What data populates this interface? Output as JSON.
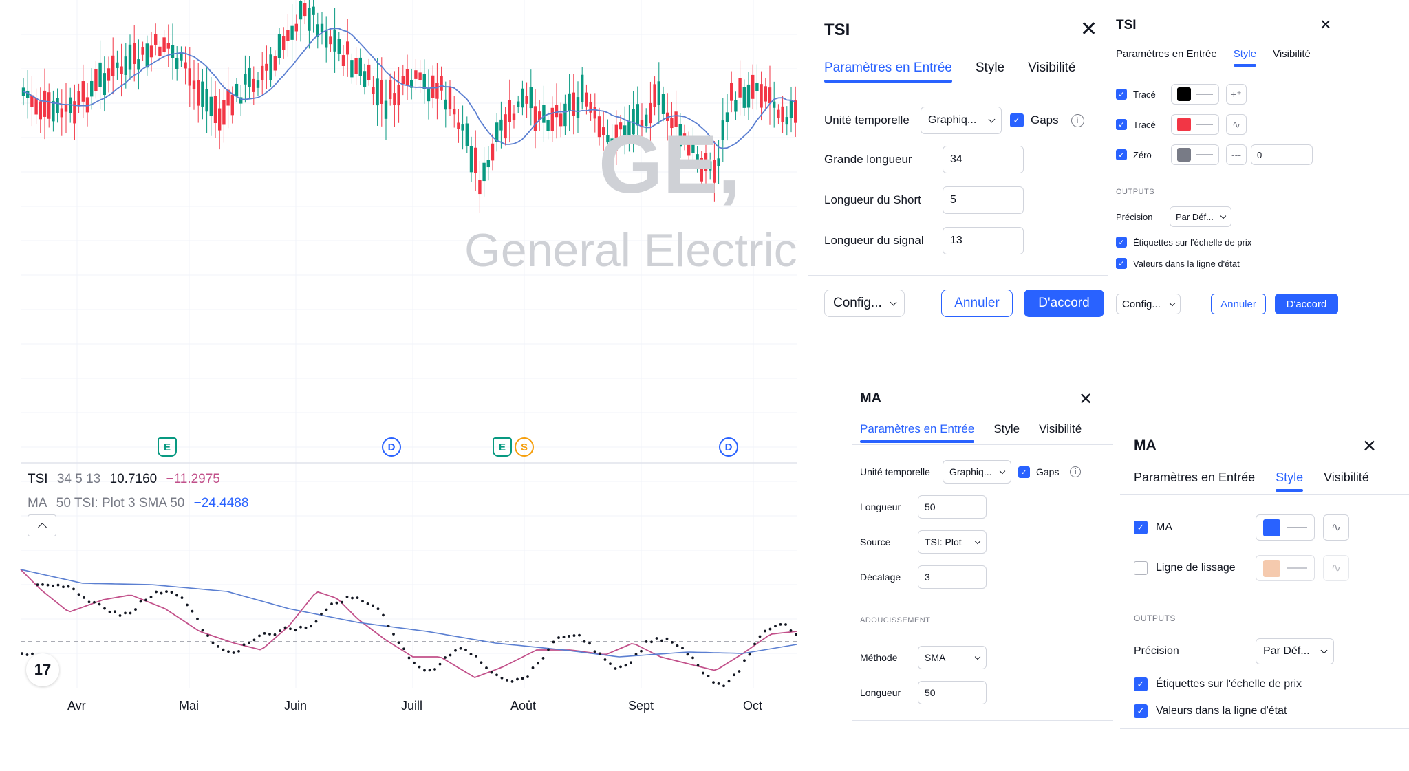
{
  "chart": {
    "watermark_ticker": "GE,",
    "watermark_name": "General Electric",
    "legend": {
      "tsi_name": "TSI",
      "tsi_params": "34 5 13",
      "tsi_value1": "10.7160",
      "tsi_value2": "−11.2975",
      "ma_name": "MA",
      "ma_params": "50 TSI: Plot 3 SMA 50",
      "ma_value": "−24.4488"
    },
    "collapse_icon": "chevron-up-icon",
    "logo_text": "17",
    "months": [
      "Avr",
      "Mai",
      "Juin",
      "Juill",
      "Août",
      "Sept",
      "Oct"
    ],
    "events": [
      {
        "label": "E",
        "kind": "earnings"
      },
      {
        "label": "D",
        "kind": "dividend"
      },
      {
        "label": "E",
        "kind": "earnings"
      },
      {
        "label": "S",
        "kind": "split"
      },
      {
        "label": "D",
        "kind": "dividend"
      }
    ],
    "colors": {
      "up": "#089981",
      "down": "#f23645",
      "ma_price": "#5b7fd1",
      "tsi": "#c2508a",
      "signal": "#5b7fd1",
      "dots": "#131722"
    }
  },
  "tsi_input": {
    "title": "TSI",
    "tabs": [
      "Paramètres en Entrée",
      "Style",
      "Visibilité"
    ],
    "timeframe_label": "Unité temporelle",
    "timeframe_value": "Graphiq...",
    "gaps_label": "Gaps",
    "long_label": "Grande longueur",
    "long_value": "34",
    "short_label": "Longueur du Short",
    "short_value": "5",
    "signal_label": "Longueur du signal",
    "signal_value": "13",
    "config_label": "Config...",
    "cancel_label": "Annuler",
    "ok_label": "D'accord"
  },
  "tsi_style": {
    "title": "TSI",
    "tabs": [
      "Paramètres en Entrée",
      "Style",
      "Visibilité"
    ],
    "plot1_label": "Tracé",
    "plot1_color": "#000000",
    "plot2_label": "Tracé",
    "plot2_color": "#f23645",
    "zero_label": "Zéro",
    "zero_color": "#787b86",
    "zero_value": "0",
    "outputs_header": "OUTPUTS",
    "precision_label": "Précision",
    "precision_value": "Par Déf...",
    "price_scale_label": "Étiquettes sur l'échelle de prix",
    "status_line_label": "Valeurs dans la ligne d'état",
    "config_label": "Config...",
    "cancel_label": "Annuler",
    "ok_label": "D'accord"
  },
  "ma_input": {
    "title": "MA",
    "tabs": [
      "Paramètres en Entrée",
      "Style",
      "Visibilité"
    ],
    "timeframe_label": "Unité temporelle",
    "timeframe_value": "Graphiq...",
    "gaps_label": "Gaps",
    "length_label": "Longueur",
    "length_value": "50",
    "source_label": "Source",
    "source_value": "TSI: Plot",
    "offset_label": "Décalage",
    "offset_value": "3",
    "smoothing_header": "ADOUCISSEMENT",
    "method_label": "Méthode",
    "method_value": "SMA",
    "length2_label": "Longueur",
    "length2_value": "50"
  },
  "ma_style": {
    "title": "MA",
    "tabs": [
      "Paramètres en Entrée",
      "Style",
      "Visibilité"
    ],
    "ma_label": "MA",
    "ma_color": "#2962ff",
    "smoothing_label": "Ligne de lissage",
    "smoothing_color": "#f2b48c",
    "outputs_header": "OUTPUTS",
    "precision_label": "Précision",
    "precision_value": "Par Déf...",
    "price_scale_label": "Étiquettes sur l'échelle de prix",
    "status_line_label": "Valeurs dans la ligne d'état"
  }
}
